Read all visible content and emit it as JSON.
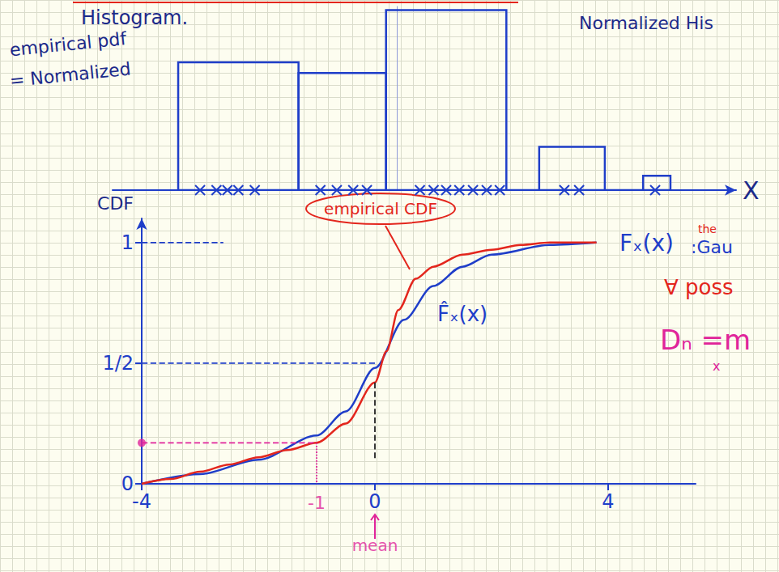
{
  "chart_data": [
    {
      "type": "histogram",
      "bins": [
        -4,
        -1.8,
        -0.2,
        2.0,
        2.6,
        3.8,
        4.5,
        5.0
      ],
      "values": [
        0.71,
        0.65,
        1.0,
        0,
        0.24,
        0,
        0.08
      ],
      "samples": [
        -3.6,
        -3.3,
        -3.1,
        -2.9,
        -2.6,
        -1.4,
        -1.1,
        -0.8,
        -0.55,
        0.42,
        0.67,
        0.9,
        1.14,
        1.39,
        1.64,
        1.88,
        3.06,
        3.33,
        4.72
      ],
      "marker": "x",
      "color": "#1f3ec9",
      "x_label": "X",
      "xlim": [
        -5.2,
        6.2
      ],
      "ylim": [
        0,
        1.02
      ],
      "tick_labels": false,
      "grid": false
    },
    {
      "type": "line",
      "y_label": "CDF",
      "xlim": [
        -4,
        5.5
      ],
      "ylim": [
        0,
        1.1
      ],
      "xticks": [
        -4,
        0,
        4
      ],
      "yticks": [
        0,
        {
          "value": 0.5,
          "label": "1/2"
        },
        1
      ],
      "grid": false,
      "series": [
        {
          "name": "Fₓ(x)",
          "color": "#1f3ec9",
          "x": [
            -4,
            -3,
            -2,
            -1,
            -0.5,
            0,
            0.5,
            1,
            1.5,
            2,
            3,
            3.8
          ],
          "values": [
            0,
            0.04,
            0.1,
            0.2,
            0.3,
            0.48,
            0.68,
            0.82,
            0.9,
            0.95,
            0.99,
            1.0
          ]
        },
        {
          "name": "F̂ₓ(x)",
          "color": "#e3261d",
          "x": [
            -4,
            -3.5,
            -3,
            -2.5,
            -2,
            -1.5,
            -1,
            -0.5,
            0,
            0.2,
            0.4,
            0.7,
            1,
            1.5,
            2,
            2.5,
            3,
            3.8
          ],
          "values": [
            0,
            0.02,
            0.05,
            0.08,
            0.11,
            0.14,
            0.17,
            0.25,
            0.42,
            0.55,
            0.72,
            0.85,
            0.9,
            0.95,
            0.97,
            0.99,
            1.0,
            1.0
          ]
        }
      ],
      "guides": [
        {
          "from": [
            -4,
            0.5
          ],
          "to": [
            0,
            0.5
          ],
          "color": "#1f3ec9",
          "line_style": "dashed"
        },
        {
          "from": [
            -4,
            1
          ],
          "to": [
            -2.6,
            1
          ],
          "color": "#1f3ec9",
          "line_style": "dashed"
        },
        {
          "from": [
            0,
            0.42
          ],
          "to": [
            0,
            0.1
          ],
          "color": "#222222",
          "line_style": "dashed"
        },
        {
          "from": [
            -4,
            0.17
          ],
          "to": [
            -1,
            0.17
          ],
          "color": "#e0249a",
          "line_style": "dashed"
        },
        {
          "from": [
            -1,
            0.17
          ],
          "to": [
            -1,
            0
          ],
          "color": "#e0249a",
          "line_style": "dotted"
        }
      ],
      "point": {
        "x": -4,
        "y": 0.17,
        "color": "#e0249a"
      },
      "marked_x": {
        "value": -1,
        "label": "-1",
        "color": "#e0249a"
      },
      "mean": {
        "value": 0,
        "label": "mean",
        "color": "#e0249a"
      }
    }
  ],
  "notes": {
    "pdf": "empirical pdf",
    "equals": "= Normalized",
    "histogram": "Histogram.",
    "normalized": "Normalized His",
    "empirical_cdf": "empirical CDF",
    "the": "the",
    "gaussian": ":Gau",
    "forall": "∀ poss",
    "dn": "Dₙ =m",
    "dn_sub": "x"
  }
}
